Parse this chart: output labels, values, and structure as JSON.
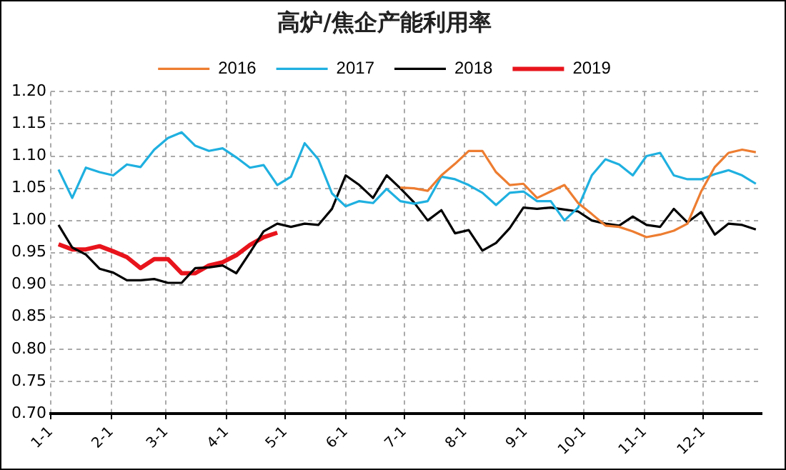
{
  "chart_data": {
    "type": "line",
    "title": "高炉/焦企产能利用率",
    "x": [
      "--01-05",
      "--01-12",
      "--01-19",
      "--01-26",
      "--02-02",
      "--02-09",
      "--02-16",
      "--02-23",
      "--03-02",
      "--03-09",
      "--03-16",
      "--03-23",
      "--03-30",
      "--04-06",
      "--04-13",
      "--04-20",
      "--04-27",
      "--05-04",
      "--05-11",
      "--05-18",
      "--05-25",
      "--06-01",
      "--06-08",
      "--06-15",
      "--06-22",
      "--06-29",
      "--07-06",
      "--07-13",
      "--07-20",
      "--07-27",
      "--08-03",
      "--08-10",
      "--08-17",
      "--08-24",
      "--08-31",
      "--09-07",
      "--09-14",
      "--09-21",
      "--09-28",
      "--10-05",
      "--10-12",
      "--10-19",
      "--10-26",
      "--11-02",
      "--11-09",
      "--11-16",
      "--11-23",
      "--11-30",
      "--12-07",
      "--12-14",
      "--12-21",
      "--12-28"
    ],
    "series": [
      {
        "name": "2016",
        "color": "#ed7d31",
        "values": [
          null,
          null,
          null,
          null,
          null,
          null,
          null,
          null,
          null,
          null,
          null,
          null,
          null,
          null,
          null,
          null,
          null,
          null,
          null,
          null,
          null,
          null,
          null,
          null,
          null,
          1.051,
          1.05,
          1.046,
          1.07,
          1.088,
          1.108,
          1.108,
          1.075,
          1.055,
          1.057,
          1.035,
          1.045,
          1.055,
          1.027,
          1.01,
          0.992,
          0.99,
          0.983,
          0.974,
          0.978,
          0.984,
          0.995,
          1.045,
          1.083,
          1.105,
          1.11,
          1.106
        ]
      },
      {
        "name": "2017",
        "color": "#1fb0e0",
        "values": [
          1.079,
          1.035,
          1.082,
          1.075,
          1.07,
          1.087,
          1.083,
          1.11,
          1.128,
          1.137,
          1.116,
          1.108,
          1.112,
          1.098,
          1.082,
          1.086,
          1.055,
          1.068,
          1.12,
          1.095,
          1.042,
          1.022,
          1.03,
          1.027,
          1.049,
          1.03,
          1.026,
          1.03,
          1.068,
          1.064,
          1.055,
          1.043,
          1.024,
          1.043,
          1.045,
          1.03,
          1.03,
          1.0,
          1.02,
          1.07,
          1.095,
          1.087,
          1.07,
          1.1,
          1.105,
          1.07,
          1.064,
          1.064,
          1.072,
          1.078,
          1.07,
          1.057
        ]
      },
      {
        "name": "2018",
        "color": "#000000",
        "values": [
          0.993,
          0.958,
          0.947,
          0.925,
          0.919,
          0.907,
          0.907,
          0.909,
          0.903,
          0.903,
          0.926,
          0.927,
          0.93,
          0.918,
          0.95,
          0.983,
          0.995,
          0.99,
          0.995,
          0.993,
          1.018,
          1.07,
          1.055,
          1.035,
          1.07,
          1.05,
          1.028,
          1.0,
          1.016,
          0.98,
          0.985,
          0.953,
          0.965,
          0.988,
          1.02,
          1.018,
          1.02,
          1.017,
          1.014,
          1.0,
          0.995,
          0.992,
          1.006,
          0.993,
          0.99,
          1.018,
          0.997,
          1.013,
          0.978,
          0.995,
          0.993,
          0.986
        ]
      },
      {
        "name": "2019",
        "color": "#e8141c",
        "values": [
          0.963,
          0.955,
          0.955,
          0.96,
          0.952,
          0.943,
          0.926,
          0.94,
          0.94,
          0.918,
          0.918,
          0.93,
          0.935,
          0.946,
          0.962,
          0.974,
          0.981,
          null,
          null,
          null,
          null,
          null,
          null,
          null,
          null,
          null,
          null,
          null,
          null,
          null,
          null,
          null,
          null,
          null,
          null,
          null,
          null,
          null,
          null,
          null,
          null,
          null,
          null,
          null,
          null,
          null,
          null,
          null,
          null,
          null,
          null,
          null
        ]
      }
    ],
    "xlim": [
      "--01-01",
      "--12-31"
    ],
    "xticks": [
      {
        "value": "--01-01",
        "label": "1-1"
      },
      {
        "value": "--02-01",
        "label": "2-1"
      },
      {
        "value": "--03-01",
        "label": "3-1"
      },
      {
        "value": "--04-01",
        "label": "4-1"
      },
      {
        "value": "--05-01",
        "label": "5-1"
      },
      {
        "value": "--06-01",
        "label": "6-1"
      },
      {
        "value": "--07-01",
        "label": "7-1"
      },
      {
        "value": "--08-01",
        "label": "8-1"
      },
      {
        "value": "--09-01",
        "label": "9-1"
      },
      {
        "value": "--10-01",
        "label": "10-1"
      },
      {
        "value": "--11-01",
        "label": "11-1"
      },
      {
        "value": "--12-01",
        "label": "12-1"
      }
    ],
    "ylim": [
      0.7,
      1.2
    ],
    "yticks": [
      {
        "value": 0.7,
        "label": "0.70"
      },
      {
        "value": 0.75,
        "label": "0.75"
      },
      {
        "value": 0.8,
        "label": "0.80"
      },
      {
        "value": 0.85,
        "label": "0.85"
      },
      {
        "value": 0.9,
        "label": "0.90"
      },
      {
        "value": 0.95,
        "label": "0.95"
      },
      {
        "value": 1.0,
        "label": "1.00"
      },
      {
        "value": 1.05,
        "label": "1.05"
      },
      {
        "value": 1.1,
        "label": "1.10"
      },
      {
        "value": 1.15,
        "label": "1.15"
      },
      {
        "value": 1.2,
        "label": "1.20"
      }
    ],
    "grid": true,
    "legend": "top",
    "marker": "none",
    "line_style": "solid"
  }
}
